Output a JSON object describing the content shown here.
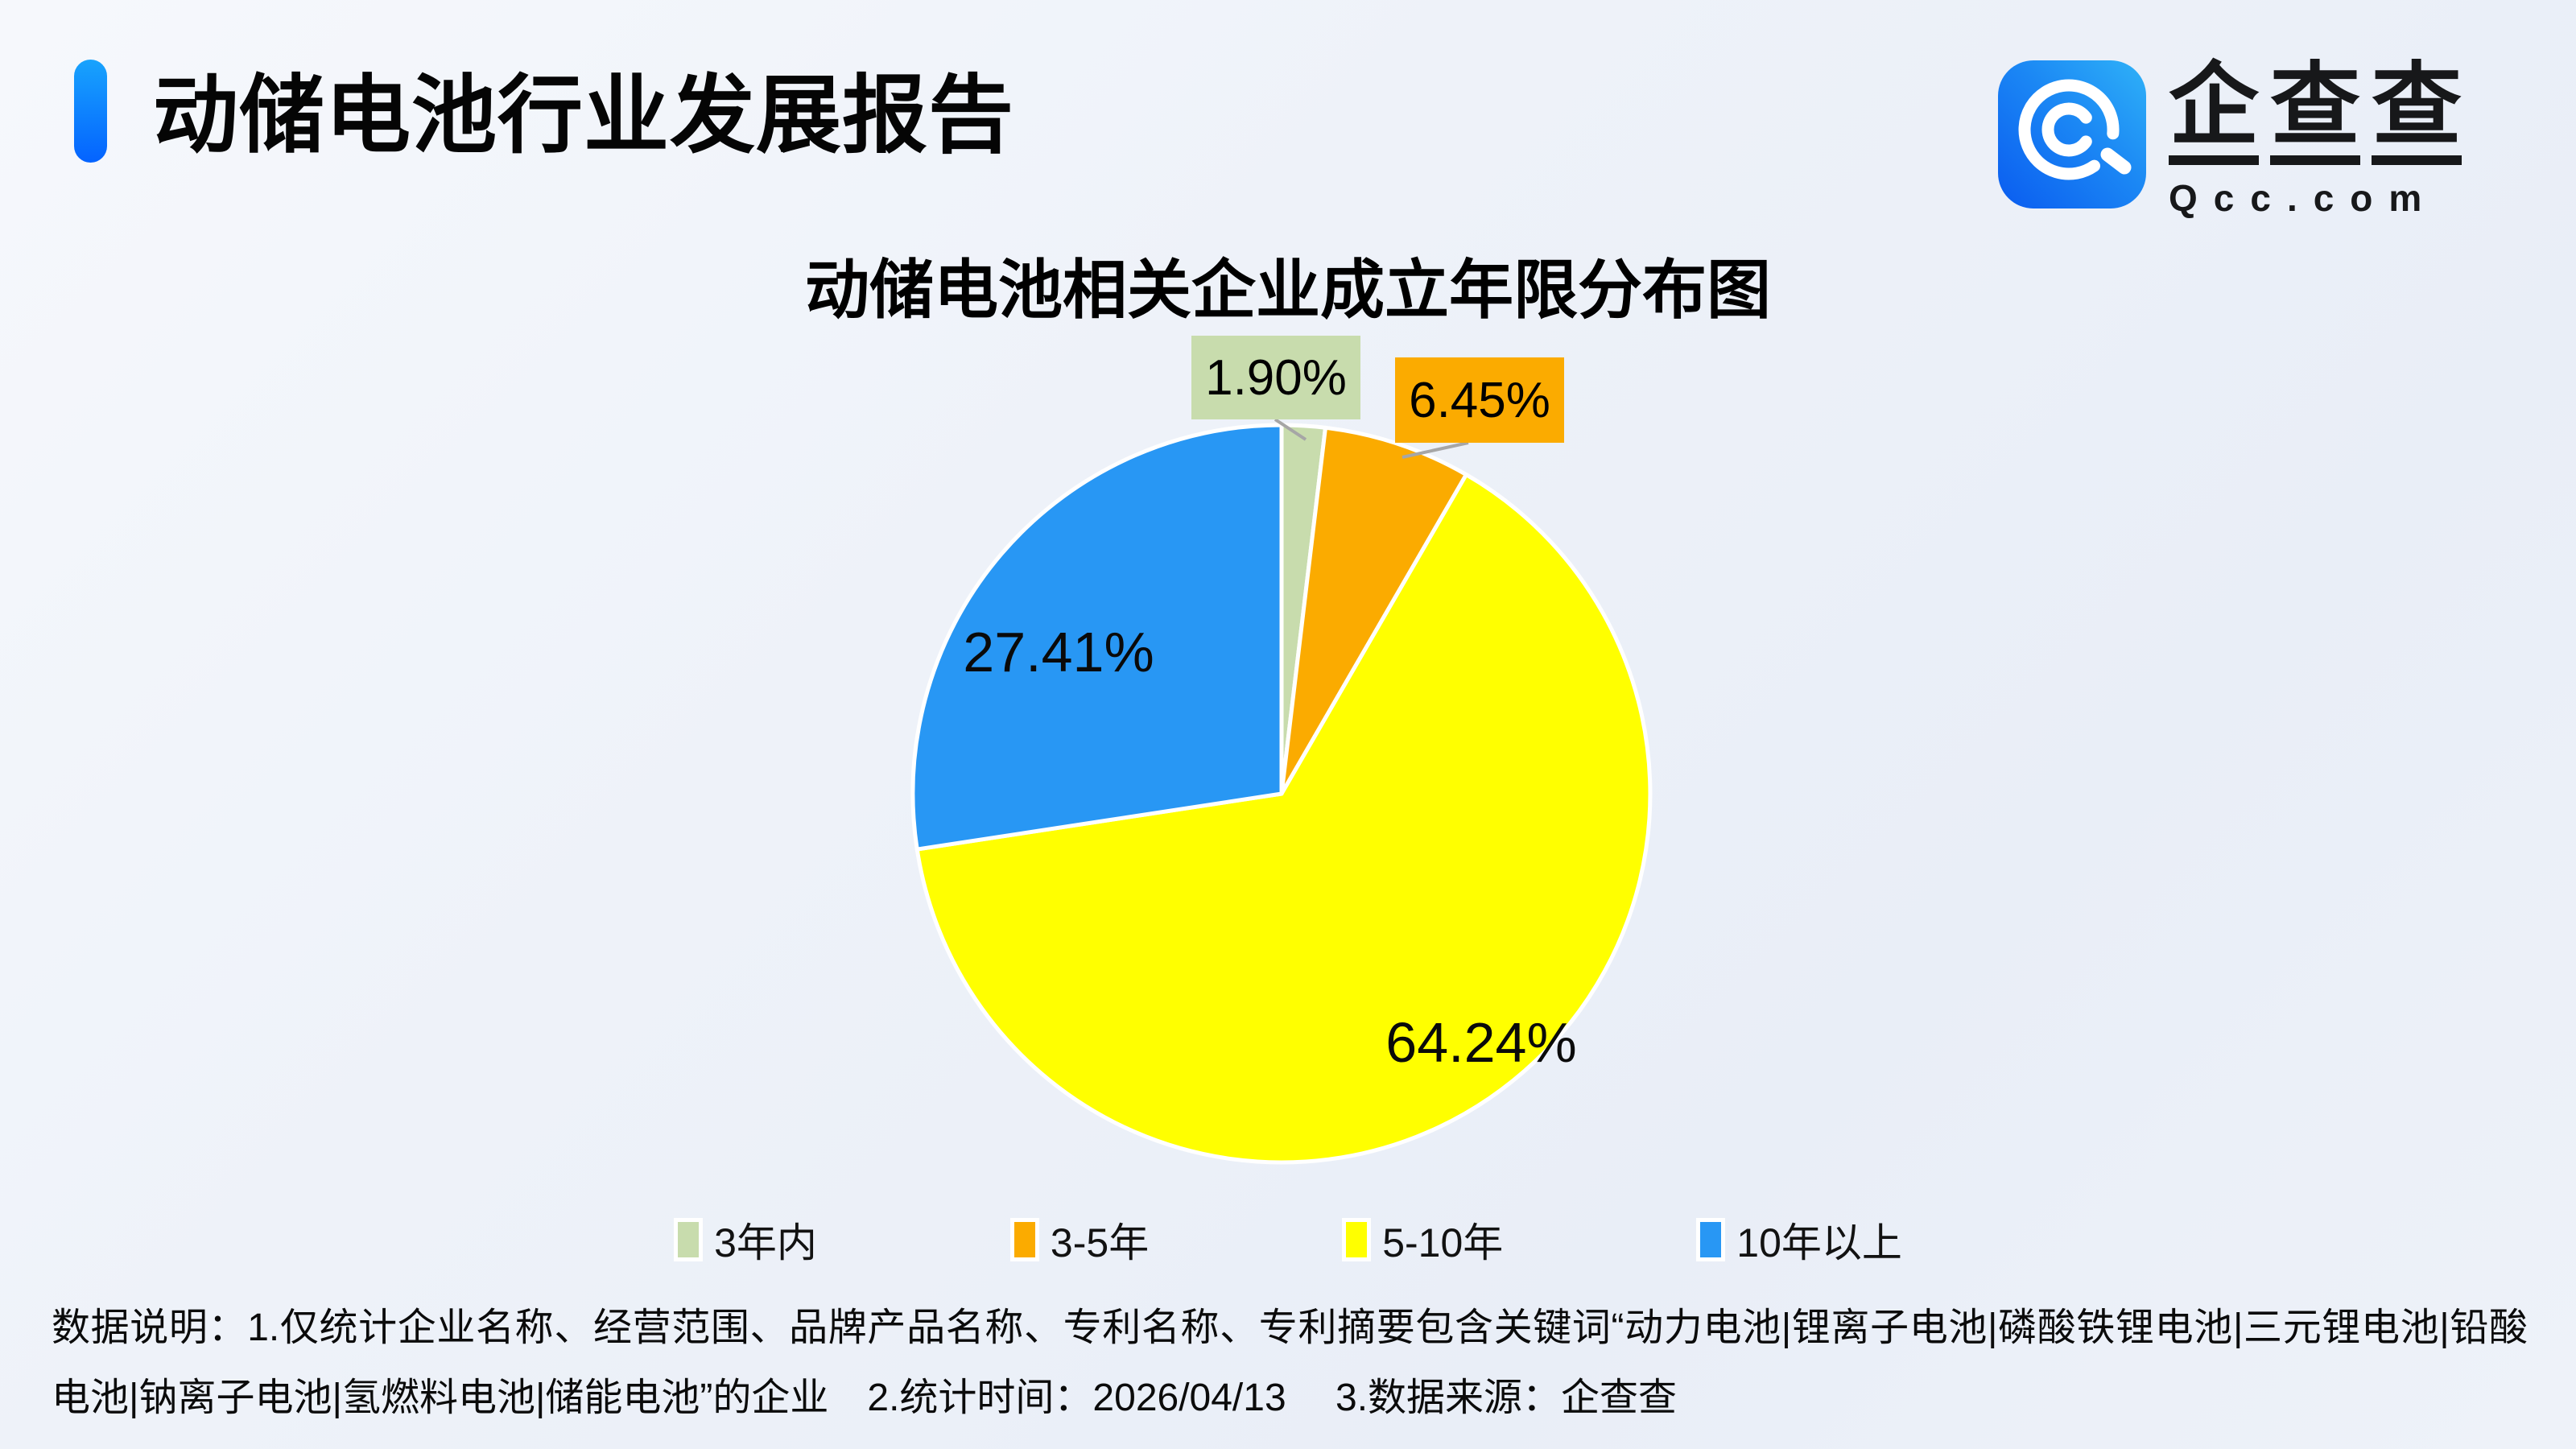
{
  "header": {
    "title": "动储电池行业发展报告",
    "accent_color_top": "#18a3fd",
    "accent_color_bottom": "#0463ff"
  },
  "brand": {
    "wordmark": "企查查",
    "domain": "Qcc.com",
    "logo_gradient_start": "#0a5cf0",
    "logo_gradient_end": "#2fb2f8"
  },
  "chart_data": {
    "type": "pie",
    "title": "动储电池相关企业成立年限分布图",
    "categories": [
      "3年内",
      "3-5年",
      "5-10年",
      "10年以上"
    ],
    "values": [
      1.9,
      6.45,
      64.24,
      27.41
    ],
    "unit": "%",
    "colors": [
      "#C8DCAD",
      "#FBAB00",
      "#FFFF00",
      "#2897F4"
    ],
    "start_angle_deg": 0,
    "direction": "clockwise",
    "label_format": "0.00%",
    "legend_position": "bottom",
    "callout_slices": [
      "3年内",
      "3-5年"
    ],
    "inner_label_slices": [
      "5-10年",
      "10年以上"
    ]
  },
  "footer": {
    "note": "数据说明：1.仅统计企业名称、经营范围、品牌产品名称、专利名称、专利摘要包含关键词“动力电池|锂离子电池|磷酸铁锂电池|三元锂电池|铅酸电池|钠离子电池|氢燃料电池|储能电池”的企业　2.统计时间：2026/04/13　  3.数据来源：企查查"
  }
}
